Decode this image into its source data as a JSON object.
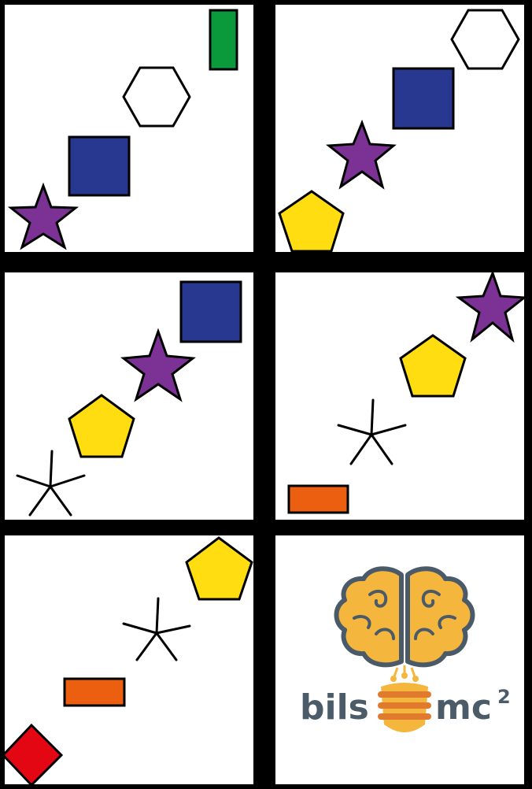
{
  "colors": {
    "background": "#000000",
    "panel": "#ffffff",
    "outline": "#000000",
    "purple": "#7b3294",
    "navy": "#283891",
    "green": "#0a9a3c",
    "yellow": "#ffdd11",
    "orange": "#ec5f10",
    "red": "#e30613",
    "white": "#ffffff",
    "logo_text": "#4b5b68",
    "logo_brain": "#f4b63d",
    "logo_outline": "#4a5a69",
    "logo_bulb": "#f4b63d",
    "logo_coil": "#e07a2c"
  },
  "panels": [
    {
      "id": "panel-1",
      "shapes": [
        "star-purple",
        "square-navy",
        "hexagon-white",
        "rectangle-green"
      ]
    },
    {
      "id": "panel-2",
      "shapes": [
        "pentagon-yellow",
        "star-purple",
        "square-navy",
        "hexagon-white"
      ]
    },
    {
      "id": "panel-3",
      "shapes": [
        "asterisk-black",
        "pentagon-yellow",
        "star-purple",
        "square-navy"
      ]
    },
    {
      "id": "panel-4",
      "shapes": [
        "rectangle-orange",
        "asterisk-black",
        "pentagon-yellow",
        "star-purple"
      ]
    },
    {
      "id": "panel-5",
      "shapes": [
        "diamond-red",
        "rectangle-orange",
        "asterisk-black",
        "pentagon-yellow"
      ]
    },
    {
      "id": "panel-6",
      "shapes": [
        "logo"
      ]
    }
  ],
  "logo": {
    "left_text": "bils",
    "right_text": "mc",
    "superscript": "2",
    "icon": "brain-bulb-icon"
  }
}
